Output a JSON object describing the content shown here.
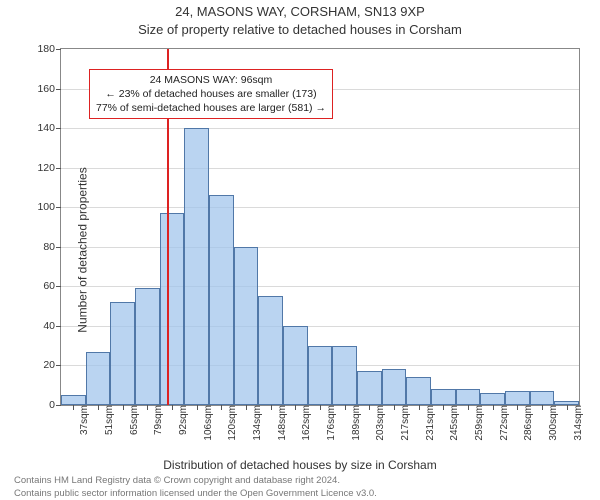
{
  "title_line1": "24, MASONS WAY, CORSHAM, SN13 9XP",
  "title_line2": "Size of property relative to detached houses in Corsham",
  "ylabel": "Number of detached properties",
  "xlabel": "Distribution of detached houses by size in Corsham",
  "footer_line1": "Contains HM Land Registry data © Crown copyright and database right 2024.",
  "footer_line2": "Contains public sector information licensed under the Open Government Licence v3.0.",
  "chart": {
    "type": "histogram",
    "ylim": [
      0,
      180
    ],
    "ytick_step": 20,
    "x_labels": [
      "37sqm",
      "51sqm",
      "65sqm",
      "79sqm",
      "92sqm",
      "106sqm",
      "120sqm",
      "134sqm",
      "148sqm",
      "162sqm",
      "176sqm",
      "189sqm",
      "203sqm",
      "217sqm",
      "231sqm",
      "245sqm",
      "259sqm",
      "272sqm",
      "286sqm",
      "300sqm",
      "314sqm"
    ],
    "bar_values": [
      5,
      27,
      52,
      59,
      97,
      140,
      106,
      80,
      55,
      40,
      30,
      30,
      17,
      18,
      14,
      8,
      8,
      6,
      7,
      7,
      2
    ],
    "bar_fill": "rgba(160,195,235,0.72)",
    "bar_stroke": "rgba(70,110,160,0.9)",
    "grid_color": "#555",
    "background_color": "#ffffff",
    "marker_color": "#d22",
    "marker_bin_index": 4,
    "annotation": {
      "line1": "24 MASONS WAY: 96sqm",
      "line2": "← 23% of detached houses are smaller (173)",
      "line3": "77% of semi-detached houses are larger (581) →",
      "top_value": 170,
      "border_color": "#d22"
    }
  }
}
